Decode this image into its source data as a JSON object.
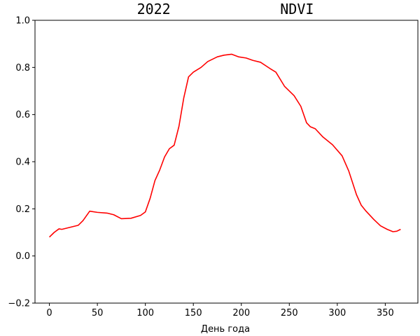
{
  "chart_data": {
    "type": "line",
    "title": "2022             NDVI",
    "xlabel": "День года",
    "x": [
      0,
      5,
      10,
      13,
      20,
      30,
      35,
      42,
      50,
      60,
      67,
      75,
      85,
      95,
      100,
      105,
      110,
      115,
      120,
      125,
      130,
      135,
      140,
      145,
      150,
      158,
      165,
      175,
      182,
      190,
      197,
      205,
      212,
      220,
      230,
      236,
      245,
      255,
      262,
      268,
      272,
      277,
      285,
      295,
      305,
      312,
      320,
      325,
      330,
      338,
      345,
      352,
      358,
      362,
      366
    ],
    "series": [
      {
        "name": "NDVI",
        "color": "#ff0000",
        "values": [
          0.08,
          0.1,
          0.115,
          0.113,
          0.12,
          0.13,
          0.15,
          0.19,
          0.185,
          0.182,
          0.175,
          0.158,
          0.16,
          0.172,
          0.187,
          0.245,
          0.32,
          0.365,
          0.42,
          0.455,
          0.47,
          0.55,
          0.67,
          0.76,
          0.78,
          0.8,
          0.825,
          0.845,
          0.852,
          0.856,
          0.845,
          0.84,
          0.83,
          0.822,
          0.795,
          0.78,
          0.72,
          0.68,
          0.635,
          0.565,
          0.548,
          0.54,
          0.505,
          0.472,
          0.425,
          0.36,
          0.26,
          0.215,
          0.19,
          0.155,
          0.128,
          0.113,
          0.103,
          0.105,
          0.113
        ]
      }
    ],
    "xlim": [
      -15,
      384
    ],
    "xticks": [
      0,
      50,
      100,
      150,
      200,
      250,
      300,
      350
    ],
    "ylim": [
      -0.2,
      1.0
    ],
    "yticks": [
      {
        "value": -0.2,
        "label": "−0.2"
      },
      {
        "value": 0,
        "label": "0.0"
      },
      0.2,
      0.4,
      0.6,
      0.8,
      {
        "value": 1.0,
        "label": "1.0"
      }
    ]
  }
}
